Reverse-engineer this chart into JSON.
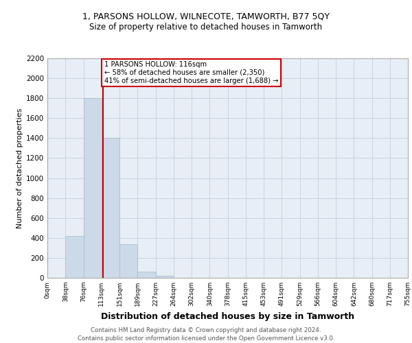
{
  "title_line1": "1, PARSONS HOLLOW, WILNECOTE, TAMWORTH, B77 5QY",
  "title_line2": "Size of property relative to detached houses in Tamworth",
  "xlabel": "Distribution of detached houses by size in Tamworth",
  "ylabel": "Number of detached properties",
  "footer_line1": "Contains HM Land Registry data © Crown copyright and database right 2024.",
  "footer_line2": "Contains public sector information licensed under the Open Government Licence v3.0.",
  "annotation_line1": "1 PARSONS HOLLOW: 116sqm",
  "annotation_line2": "← 58% of detached houses are smaller (2,350)",
  "annotation_line3": "41% of semi-detached houses are larger (1,688) →",
  "bin_edges": [
    0,
    38,
    76,
    113,
    151,
    189,
    227,
    264,
    302,
    340,
    378,
    415,
    453,
    491,
    529,
    566,
    604,
    642,
    680,
    717,
    755
  ],
  "bar_heights": [
    0,
    420,
    1800,
    1400,
    340,
    60,
    20,
    0,
    0,
    0,
    0,
    0,
    0,
    0,
    0,
    0,
    0,
    0,
    0,
    0
  ],
  "bar_color": "#ccd9e8",
  "bar_edge_color": "#a8bece",
  "vline_x": 116,
  "vline_color": "#cc0000",
  "annotation_box_color": "#cc0000",
  "grid_color": "#c8d4e0",
  "background_color": "#e8eef5",
  "ylim": [
    0,
    2200
  ],
  "yticks": [
    0,
    200,
    400,
    600,
    800,
    1000,
    1200,
    1400,
    1600,
    1800,
    2000,
    2200
  ],
  "tick_labels": [
    "0sqm",
    "38sqm",
    "76sqm",
    "113sqm",
    "151sqm",
    "189sqm",
    "227sqm",
    "264sqm",
    "302sqm",
    "340sqm",
    "378sqm",
    "415sqm",
    "453sqm",
    "491sqm",
    "529sqm",
    "566sqm",
    "604sqm",
    "642sqm",
    "680sqm",
    "717sqm",
    "755sqm"
  ],
  "title1_fontsize": 9,
  "title2_fontsize": 8.5,
  "ylabel_fontsize": 8,
  "xlabel_fontsize": 9
}
